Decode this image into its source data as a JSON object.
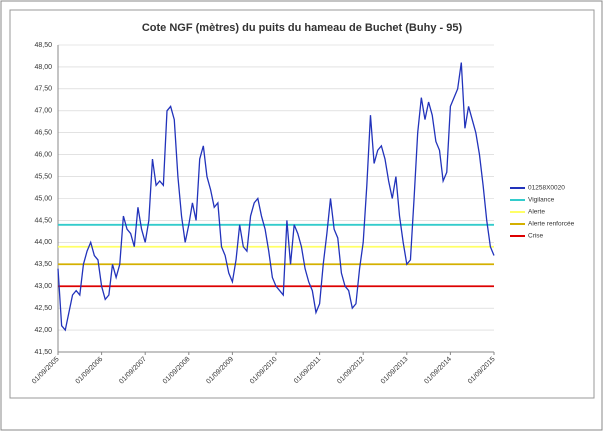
{
  "chart_data": {
    "type": "line",
    "title": "Cote NGF (mètres) du puits du hameau de Buchet (Buhy - 95)",
    "x": [
      "01/09/2005",
      "01/10/2005",
      "01/11/2005",
      "01/12/2005",
      "01/01/2006",
      "01/02/2006",
      "01/03/2006",
      "01/04/2006",
      "01/05/2006",
      "01/06/2006",
      "01/07/2006",
      "01/08/2006",
      "01/09/2006",
      "01/10/2006",
      "01/11/2006",
      "01/12/2006",
      "01/01/2007",
      "01/02/2007",
      "01/03/2007",
      "01/04/2007",
      "01/05/2007",
      "01/06/2007",
      "01/07/2007",
      "01/08/2007",
      "01/09/2007",
      "01/10/2007",
      "01/11/2007",
      "01/12/2007",
      "01/01/2008",
      "01/02/2008",
      "01/03/2008",
      "01/04/2008",
      "01/05/2008",
      "01/06/2008",
      "01/07/2008",
      "01/08/2008",
      "01/09/2008",
      "01/10/2008",
      "01/11/2008",
      "01/12/2008",
      "01/01/2009",
      "01/02/2009",
      "01/03/2009",
      "01/04/2009",
      "01/05/2009",
      "01/06/2009",
      "01/07/2009",
      "01/08/2009",
      "01/09/2009",
      "01/10/2009",
      "01/11/2009",
      "01/12/2009",
      "01/01/2010",
      "01/02/2010",
      "01/03/2010",
      "01/04/2010",
      "01/05/2010",
      "01/06/2010",
      "01/07/2010",
      "01/08/2010",
      "01/09/2010",
      "01/10/2010",
      "01/11/2010",
      "01/12/2010",
      "01/01/2011",
      "01/02/2011",
      "01/03/2011",
      "01/04/2011",
      "01/05/2011",
      "01/06/2011",
      "01/07/2011",
      "01/08/2011",
      "01/09/2011",
      "01/10/2011",
      "01/11/2011",
      "01/12/2011",
      "01/01/2012",
      "01/02/2012",
      "01/03/2012",
      "01/04/2012",
      "01/05/2012",
      "01/06/2012",
      "01/07/2012",
      "01/08/2012",
      "01/09/2012",
      "01/10/2012",
      "01/11/2012",
      "01/12/2012",
      "01/01/2013",
      "01/02/2013",
      "01/03/2013",
      "01/04/2013",
      "01/05/2013",
      "01/06/2013",
      "01/07/2013",
      "01/08/2013",
      "01/09/2013",
      "01/10/2013",
      "01/11/2013",
      "01/12/2013",
      "01/01/2014",
      "01/02/2014",
      "01/03/2014",
      "01/04/2014",
      "01/05/2014",
      "01/06/2014",
      "01/07/2014",
      "01/08/2014",
      "01/09/2014",
      "01/10/2014",
      "01/11/2014",
      "01/12/2014",
      "01/01/2015",
      "01/02/2015",
      "01/03/2015",
      "01/04/2015",
      "01/05/2015",
      "01/06/2015",
      "01/07/2015",
      "01/08/2015",
      "01/09/2015"
    ],
    "series": [
      {
        "name": "01258X0020",
        "color": "#2233bb",
        "values": [
          43.4,
          42.1,
          42.0,
          42.4,
          42.8,
          42.9,
          42.8,
          43.5,
          43.8,
          44.0,
          43.7,
          43.6,
          43.0,
          42.7,
          42.8,
          43.5,
          43.2,
          43.5,
          44.6,
          44.3,
          44.2,
          43.9,
          44.8,
          44.3,
          44.0,
          44.5,
          45.9,
          45.3,
          45.4,
          45.3,
          47.0,
          47.1,
          46.8,
          45.5,
          44.6,
          44.0,
          44.4,
          44.9,
          44.5,
          45.9,
          46.2,
          45.5,
          45.2,
          44.8,
          44.9,
          43.9,
          43.7,
          43.3,
          43.1,
          43.6,
          44.4,
          43.9,
          43.8,
          44.6,
          44.9,
          45.0,
          44.6,
          44.3,
          43.8,
          43.2,
          43.0,
          42.9,
          42.8,
          44.5,
          43.5,
          44.4,
          44.2,
          43.9,
          43.4,
          43.1,
          42.9,
          42.4,
          42.6,
          43.5,
          44.2,
          45.0,
          44.3,
          44.1,
          43.3,
          43.0,
          42.9,
          42.5,
          42.6,
          43.4,
          44.0,
          45.3,
          46.9,
          45.8,
          46.1,
          46.2,
          45.9,
          45.4,
          45.0,
          45.5,
          44.6,
          44.0,
          43.5,
          43.6,
          45.0,
          46.5,
          47.3,
          46.8,
          47.2,
          46.9,
          46.3,
          46.1,
          45.4,
          45.6,
          47.1,
          47.3,
          47.5,
          48.1,
          46.6,
          47.1,
          46.8,
          46.5,
          46.0,
          45.3,
          44.5,
          43.9,
          43.7
        ]
      }
    ],
    "hlines": [
      {
        "name": "Vigilance",
        "color": "#33cccc",
        "value": 44.4
      },
      {
        "name": "Alerte",
        "color": "#ffff66",
        "value": 43.9
      },
      {
        "name": "Alerte renforcée",
        "color": "#d4b000",
        "value": 43.5
      },
      {
        "name": "Crise",
        "color": "#dd0000",
        "value": 43.0
      }
    ],
    "xticks": [
      "01/09/2005",
      "01/09/2006",
      "01/09/2007",
      "01/09/2008",
      "01/09/2009",
      "01/09/2010",
      "01/09/2011",
      "01/09/2012",
      "01/09/2013",
      "01/09/2014",
      "01/09/2015"
    ],
    "ylim": [
      41.5,
      48.5
    ],
    "yticks": [
      {
        "value": 41.5,
        "label": "41,50"
      },
      {
        "value": 42,
        "label": "42,00"
      },
      {
        "value": 42.5,
        "label": "42,50"
      },
      {
        "value": 43,
        "label": "43,00"
      },
      {
        "value": 43.5,
        "label": "43,50"
      },
      {
        "value": 44,
        "label": "44,00"
      },
      {
        "value": 44.5,
        "label": "44,50"
      },
      {
        "value": 45,
        "label": "45,00"
      },
      {
        "value": 45.5,
        "label": "45,50"
      },
      {
        "value": 46,
        "label": "46,00"
      },
      {
        "value": 46.5,
        "label": "46,50"
      },
      {
        "value": 47,
        "label": "47,00"
      },
      {
        "value": 47.5,
        "label": "47,50"
      },
      {
        "value": 48,
        "label": "48,00"
      },
      {
        "value": 48.5,
        "label": "48,50"
      }
    ],
    "grid": true
  }
}
